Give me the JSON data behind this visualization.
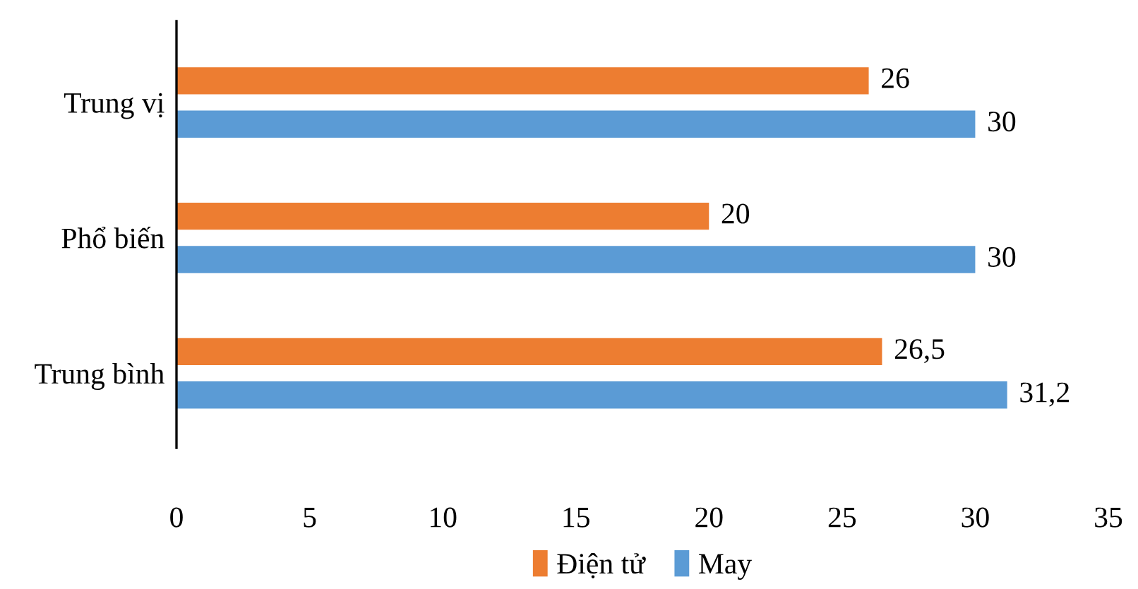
{
  "chart_data": {
    "type": "bar",
    "orientation": "horizontal",
    "categories": [
      "Trung vị",
      "Phổ biến",
      "Trung bình"
    ],
    "series": [
      {
        "name": "Điện tử",
        "color": "#ed7d31",
        "values": [
          26,
          20,
          26.5
        ],
        "value_labels": [
          "26",
          "20",
          "26,5"
        ]
      },
      {
        "name": "May",
        "color": "#5b9bd5",
        "values": [
          30,
          30,
          31.2
        ],
        "value_labels": [
          "30",
          "30",
          "31,2"
        ]
      }
    ],
    "xlim": [
      0,
      35
    ],
    "xticks": [
      0,
      5,
      10,
      15,
      20,
      25,
      30,
      35
    ],
    "grid": false,
    "legend": "bottom"
  }
}
